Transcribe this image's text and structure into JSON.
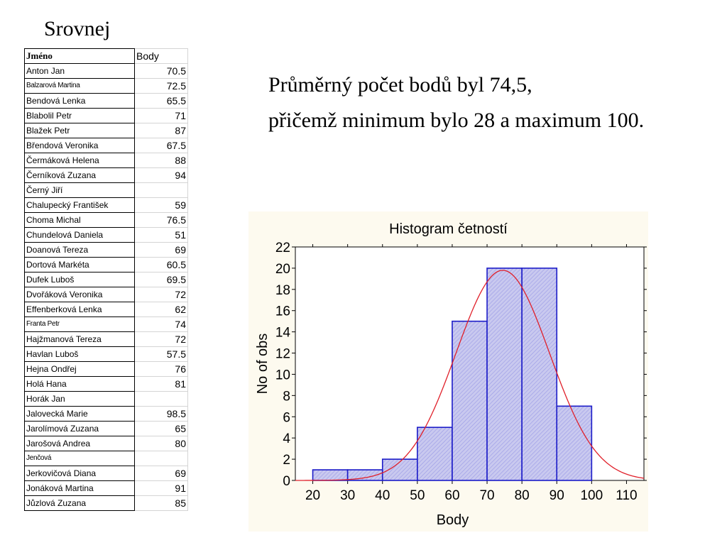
{
  "slide": {
    "title": "Srovnej",
    "summary_line1": "Průměrný počet bodů byl 74,5,",
    "summary_line2": "přičemž minimum bylo 28 a maximum 100."
  },
  "table": {
    "headers": [
      "Jméno",
      "Body"
    ],
    "rows": [
      {
        "name": "Anton Jan",
        "value": "70.5"
      },
      {
        "name": "Balzarová Martina",
        "value": "72.5"
      },
      {
        "name": "Bendová Lenka",
        "value": "65.5"
      },
      {
        "name": "Blabolil Petr",
        "value": "71"
      },
      {
        "name": "Blažek Petr",
        "value": "87"
      },
      {
        "name": "Břendová Veronika",
        "value": "67.5"
      },
      {
        "name": "Čermáková Helena",
        "value": "88"
      },
      {
        "name": "Černíková Zuzana",
        "value": "94"
      },
      {
        "name": "Černý Jiří",
        "value": ""
      },
      {
        "name": "Chalupecký František",
        "value": "59"
      },
      {
        "name": "Choma Michal",
        "value": "76.5"
      },
      {
        "name": "Chundelová Daniela",
        "value": "51"
      },
      {
        "name": "Doanová Tereza",
        "value": "69"
      },
      {
        "name": "Dortová Markéta",
        "value": "60.5"
      },
      {
        "name": "Dufek Luboš",
        "value": "69.5"
      },
      {
        "name": "Dvořáková Veronika",
        "value": "72"
      },
      {
        "name": "Effenberková Lenka",
        "value": "62"
      },
      {
        "name": "Franta Petr",
        "value": "74"
      },
      {
        "name": "Hajžmanová Tereza",
        "value": "72"
      },
      {
        "name": "Havlan Luboš",
        "value": "57.5"
      },
      {
        "name": "Hejna Ondřej",
        "value": "76"
      },
      {
        "name": "Holá Hana",
        "value": "81"
      },
      {
        "name": "Horák Jan",
        "value": ""
      },
      {
        "name": "Jalovecká Marie",
        "value": "98.5"
      },
      {
        "name": "Jarolímová Zuzana",
        "value": "65"
      },
      {
        "name": "Jarošová Andrea",
        "value": "80"
      },
      {
        "name": "Jenčová",
        "value": ""
      },
      {
        "name": "Jerkovičová Diana",
        "value": "69"
      },
      {
        "name": "Jonáková Martina",
        "value": "91"
      },
      {
        "name": "Jůzlová Zuzana",
        "value": "85"
      }
    ]
  },
  "chart_data": {
    "type": "bar",
    "subtype": "histogram",
    "title": "Histogram četností",
    "xlabel": "Body",
    "ylabel": "No of obs",
    "bins": [
      {
        "from": 20,
        "to": 30,
        "count": 1
      },
      {
        "from": 30,
        "to": 40,
        "count": 1
      },
      {
        "from": 40,
        "to": 50,
        "count": 2
      },
      {
        "from": 50,
        "to": 60,
        "count": 5
      },
      {
        "from": 60,
        "to": 70,
        "count": 15
      },
      {
        "from": 70,
        "to": 80,
        "count": 20
      },
      {
        "from": 80,
        "to": 90,
        "count": 20
      },
      {
        "from": 90,
        "to": 100,
        "count": 7
      }
    ],
    "x_ticks": [
      20,
      30,
      40,
      50,
      60,
      70,
      80,
      90,
      100,
      110
    ],
    "y_ticks": [
      0,
      2,
      4,
      6,
      8,
      10,
      12,
      14,
      16,
      18,
      20,
      22
    ],
    "xlim": [
      15,
      115
    ],
    "ylim": [
      0,
      22
    ],
    "normal_curve": {
      "mean": 74.5,
      "sd": 13.4,
      "peak": 19.8,
      "color": "#e0202a"
    },
    "bar_fill": "#c9c9ef",
    "bar_stroke": "#1c1cc8",
    "background": "#fdfaef"
  }
}
